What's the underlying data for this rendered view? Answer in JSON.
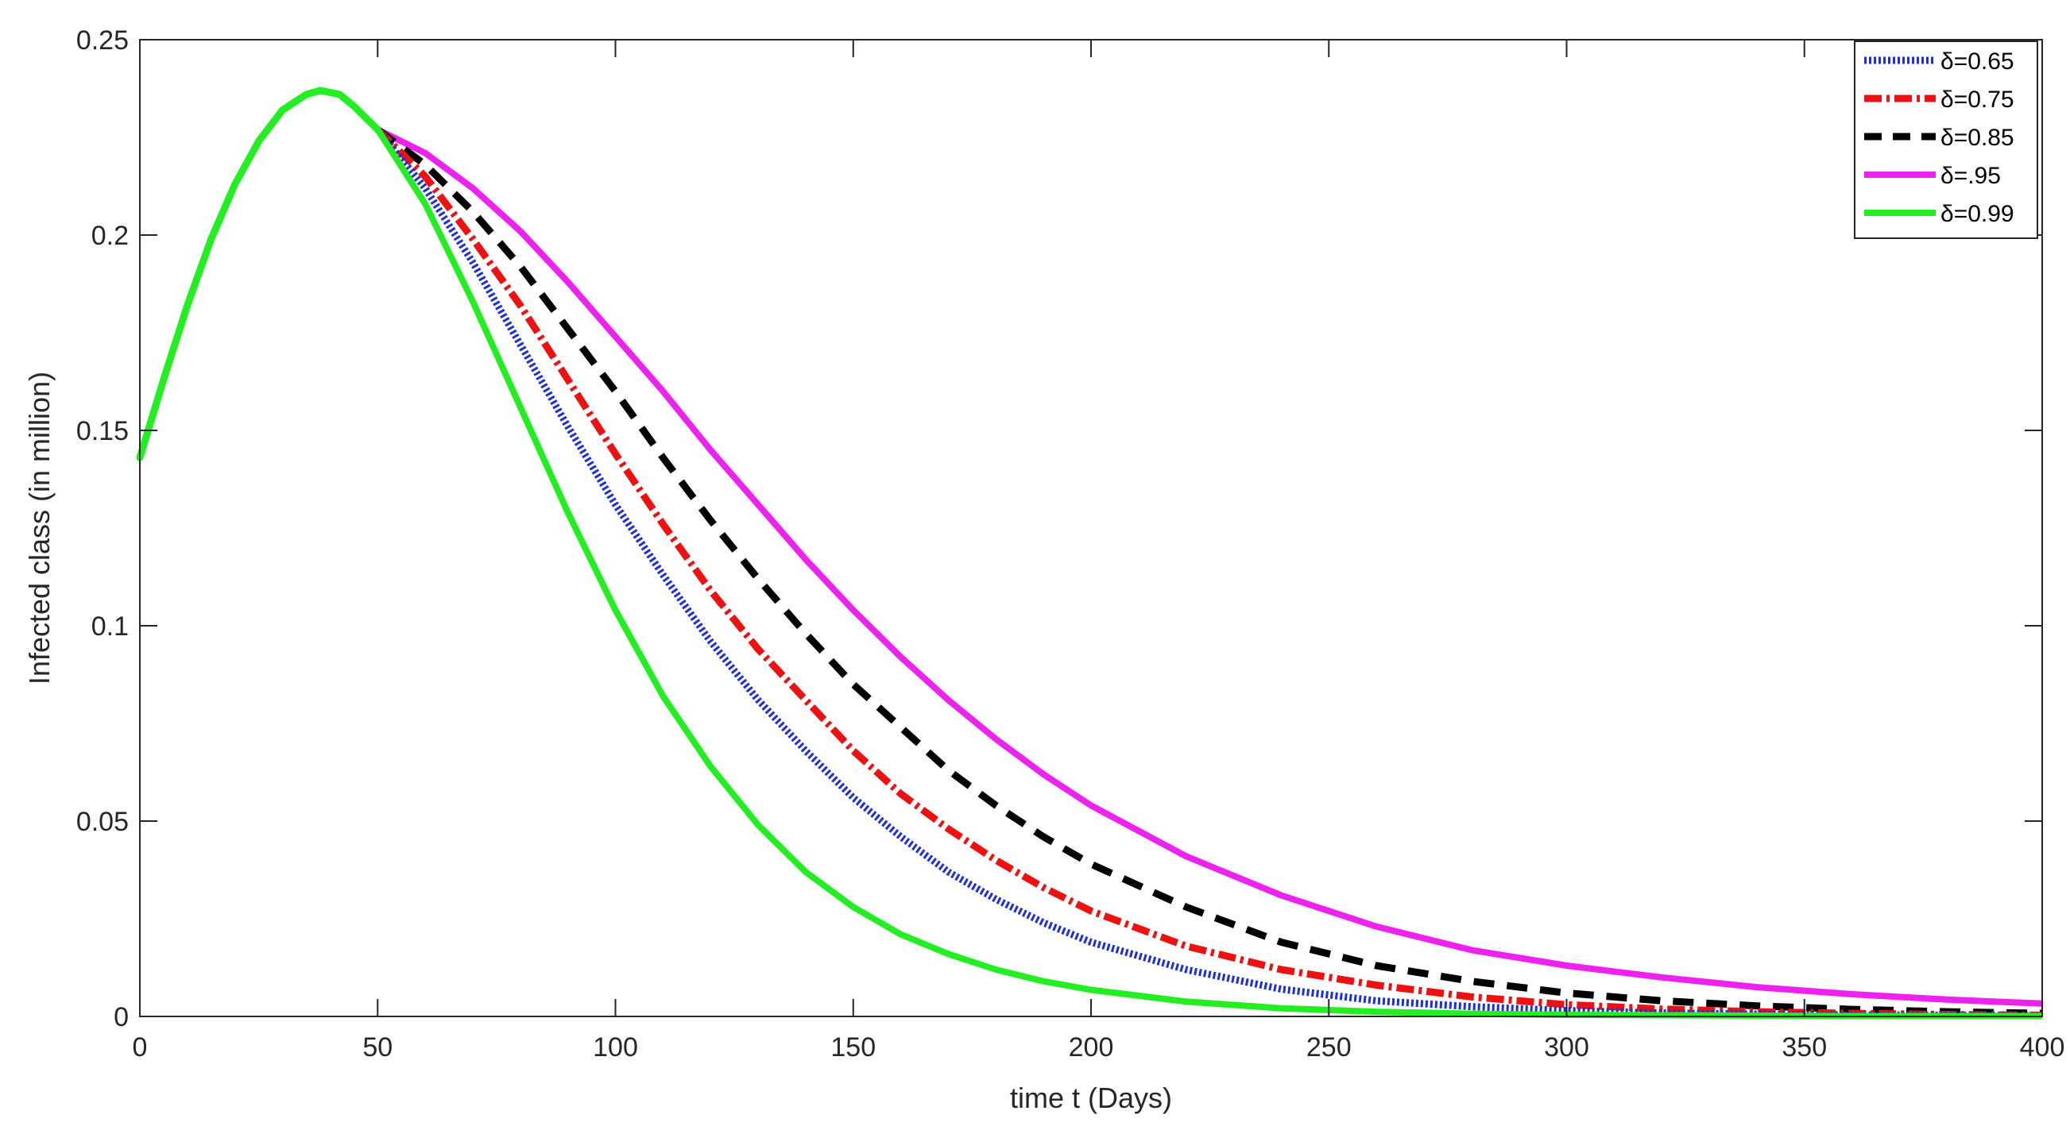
{
  "chart_data": {
    "type": "line",
    "title": "",
    "xlabel": "time t (Days)",
    "ylabel": "Infected class (in million)",
    "xlim": [
      0,
      400
    ],
    "ylim": [
      0,
      0.25
    ],
    "grid": false,
    "legend_position": "top-right",
    "x_ticks": [
      "0",
      "50",
      "100",
      "150",
      "200",
      "250",
      "300",
      "350",
      "400"
    ],
    "y_ticks": [
      "0",
      "0.05",
      "0.1",
      "0.15",
      "0.2",
      "0.25"
    ],
    "shared_before_x": 50,
    "shared_curve": {
      "x": [
        0,
        5,
        10,
        15,
        20,
        25,
        30,
        35,
        38,
        42,
        45,
        50
      ],
      "y": [
        0.143,
        0.163,
        0.182,
        0.199,
        0.213,
        0.224,
        0.232,
        0.236,
        0.237,
        0.236,
        0.233,
        0.227
      ]
    },
    "series": [
      {
        "name": "δ=0.65",
        "color": "#1f2fd6",
        "style": "dotted",
        "x": [
          50,
          60,
          70,
          80,
          90,
          100,
          110,
          120,
          130,
          140,
          150,
          160,
          170,
          180,
          190,
          200,
          220,
          240,
          260,
          280,
          300,
          320,
          340,
          360,
          380,
          400
        ],
        "y": [
          0.227,
          0.212,
          0.193,
          0.172,
          0.151,
          0.131,
          0.113,
          0.096,
          0.081,
          0.068,
          0.056,
          0.046,
          0.037,
          0.03,
          0.024,
          0.019,
          0.012,
          0.007,
          0.004,
          0.0025,
          0.0015,
          0.0009,
          0.0006,
          0.0004,
          0.0003,
          0.0002
        ]
      },
      {
        "name": "δ=0.75",
        "color": "#ee1111",
        "style": "dashdot",
        "x": [
          50,
          60,
          70,
          80,
          90,
          100,
          110,
          120,
          130,
          140,
          150,
          160,
          170,
          180,
          190,
          200,
          220,
          240,
          260,
          280,
          300,
          320,
          340,
          360,
          380,
          400
        ],
        "y": [
          0.227,
          0.215,
          0.199,
          0.182,
          0.163,
          0.144,
          0.126,
          0.109,
          0.094,
          0.081,
          0.068,
          0.057,
          0.048,
          0.04,
          0.033,
          0.027,
          0.018,
          0.012,
          0.008,
          0.005,
          0.003,
          0.0019,
          0.0012,
          0.0008,
          0.0005,
          0.0003
        ]
      },
      {
        "name": "δ=0.85",
        "color": "#000000",
        "style": "dashed",
        "x": [
          50,
          60,
          70,
          80,
          90,
          100,
          110,
          120,
          130,
          140,
          150,
          160,
          170,
          180,
          190,
          200,
          220,
          240,
          260,
          280,
          300,
          320,
          340,
          360,
          380,
          400
        ],
        "y": [
          0.227,
          0.218,
          0.206,
          0.192,
          0.176,
          0.16,
          0.143,
          0.127,
          0.112,
          0.098,
          0.085,
          0.074,
          0.063,
          0.054,
          0.046,
          0.039,
          0.028,
          0.019,
          0.013,
          0.009,
          0.006,
          0.004,
          0.0027,
          0.0018,
          0.0012,
          0.0008
        ]
      },
      {
        "name": "δ=.95",
        "color": "#ee22ee",
        "style": "solid",
        "x": [
          50,
          60,
          70,
          80,
          90,
          100,
          110,
          120,
          130,
          140,
          150,
          160,
          170,
          180,
          190,
          200,
          220,
          240,
          260,
          280,
          300,
          320,
          340,
          360,
          380,
          400
        ],
        "y": [
          0.227,
          0.221,
          0.212,
          0.201,
          0.188,
          0.174,
          0.16,
          0.145,
          0.131,
          0.117,
          0.104,
          0.092,
          0.081,
          0.071,
          0.062,
          0.054,
          0.041,
          0.031,
          0.023,
          0.017,
          0.013,
          0.01,
          0.0075,
          0.0057,
          0.0043,
          0.0033
        ]
      },
      {
        "name": "δ=0.99",
        "color": "#22ee22",
        "style": "solid",
        "x": [
          50,
          60,
          70,
          80,
          90,
          100,
          110,
          120,
          130,
          140,
          150,
          160,
          170,
          180,
          190,
          200,
          220,
          240,
          260,
          280,
          300,
          320,
          340,
          360,
          380,
          400
        ],
        "y": [
          0.227,
          0.208,
          0.183,
          0.156,
          0.129,
          0.104,
          0.082,
          0.064,
          0.049,
          0.037,
          0.028,
          0.021,
          0.016,
          0.012,
          0.009,
          0.0068,
          0.0038,
          0.0021,
          0.0012,
          0.0007,
          0.0004,
          0.0003,
          0.0002,
          0.0001,
          0.0001,
          0.0001
        ]
      }
    ]
  }
}
